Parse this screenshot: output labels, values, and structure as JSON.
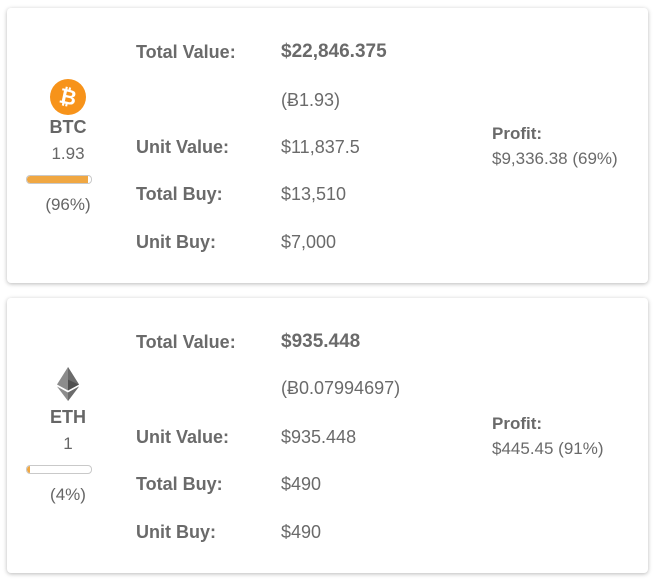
{
  "holdings": [
    {
      "symbol": "BTC",
      "amount": "1.93",
      "share_fraction": 0.96,
      "share_label": "(96%)",
      "icon": "bitcoin-icon",
      "accent_color": "#f7931a",
      "total_value_label": "Total Value:",
      "total_value": "$22,846.375",
      "crypto_value": "(Ƀ1.93)",
      "unit_value_label": "Unit Value:",
      "unit_value": "$11,837.5",
      "total_buy_label": "Total Buy:",
      "total_buy": "$13,510",
      "unit_buy_label": "Unit Buy:",
      "unit_buy": "$7,000",
      "profit_label": "Profit:",
      "profit_value": "$9,336.38 (69%)"
    },
    {
      "symbol": "ETH",
      "amount": "1",
      "share_fraction": 0.04,
      "share_label": "(4%)",
      "icon": "ethereum-icon",
      "accent_color": "#8c8c8c",
      "total_value_label": "Total Value:",
      "total_value": "$935.448",
      "crypto_value": "(Ƀ0.07994697)",
      "unit_value_label": "Unit Value:",
      "unit_value": "$935.448",
      "total_buy_label": "Total Buy:",
      "total_buy": "$490",
      "unit_buy_label": "Unit Buy:",
      "unit_buy": "$490",
      "profit_label": "Profit:",
      "profit_value": "$445.45 (91%)"
    }
  ],
  "colors": {
    "bar_fill": "#f0a742",
    "text": "#6a6a6a"
  }
}
